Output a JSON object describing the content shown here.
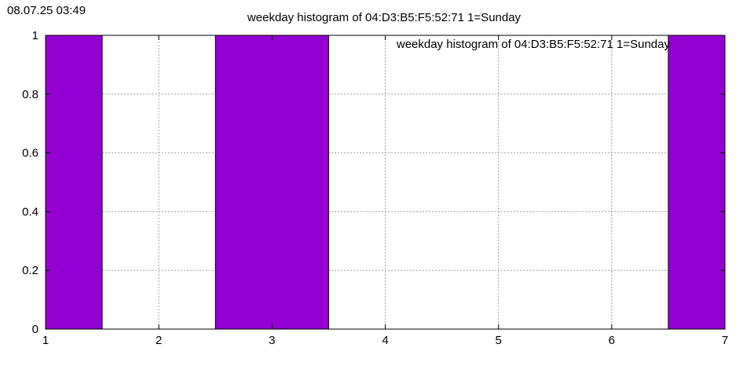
{
  "timestamp": "08.07.25 03:49",
  "chart_data": {
    "type": "bar",
    "title": "weekday histogram of 04:D3:B5:F5:52:71 1=Sunday",
    "xlabel": "",
    "ylabel": "",
    "xlim": [
      1,
      7
    ],
    "ylim": [
      0,
      1
    ],
    "x_ticks": [
      "1",
      "2",
      "3",
      "4",
      "5",
      "6",
      "7"
    ],
    "y_ticks": [
      "0",
      "0.2",
      "0.4",
      "0.6",
      "0.8",
      "1"
    ],
    "grid": true,
    "legend_position": "top-right",
    "series": [
      {
        "name": "weekday histogram of 04:D3:B5:F5:52:71 1=Sunday",
        "color": "#9400d3",
        "bars": [
          {
            "x": 1,
            "value": 1
          },
          {
            "x": 3,
            "value": 1
          },
          {
            "x": 7,
            "value": 1
          }
        ]
      }
    ]
  }
}
